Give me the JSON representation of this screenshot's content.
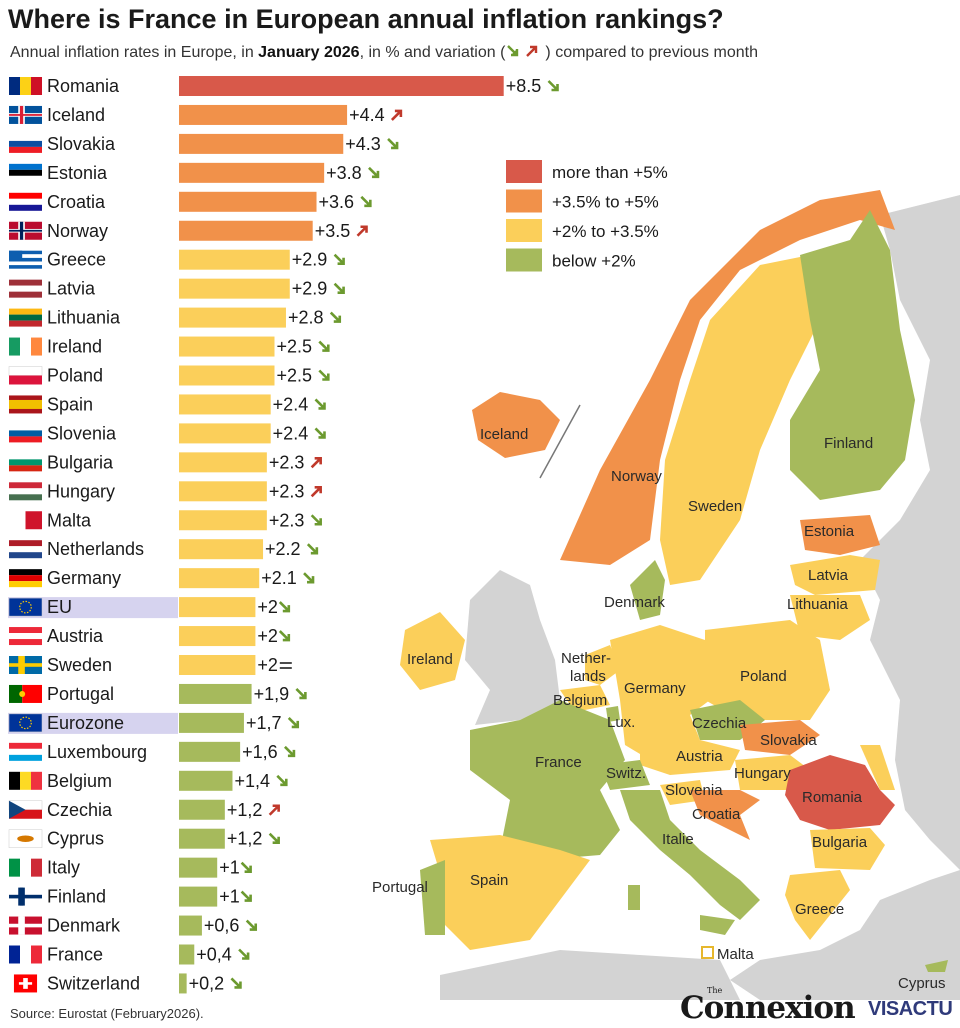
{
  "title": "Where is France in European annual inflation rankings?",
  "subtitle": {
    "prefix": "Annual inflation rates in Europe, in ",
    "bold": "January 2026",
    "suffix": ", in % and variation (",
    "suffix2": ") compared to previous month"
  },
  "source": "Source: Eurostat (February2026).",
  "logo": {
    "the": "The",
    "connexion": "Connexion",
    "visactu": "VISACTU"
  },
  "colors": {
    "gt5": "#d8594a",
    "3_5to5": "#f1914a",
    "2to3_5": "#fbcf5a",
    "lt2": "#a6ba5c",
    "highlight": "#d6d3ef",
    "land_other": "#d3d3d3",
    "sea": "#ffffff"
  },
  "legend": [
    {
      "label": "more than +5%",
      "color": "#d8594a"
    },
    {
      "label": "+3.5% to +5%",
      "color": "#f1914a"
    },
    {
      "label": "+2% to +3.5%",
      "color": "#fbcf5a"
    },
    {
      "label": "below +2%",
      "color": "#a6ba5c"
    }
  ],
  "chart_data": {
    "type": "bar",
    "orientation": "horizontal",
    "title": "Where is France in European annual inflation rankings?",
    "unit": "%",
    "categories": [
      "Romania",
      "Iceland",
      "Slovakia",
      "Estonia",
      "Croatia",
      "Norway",
      "Greece",
      "Latvia",
      "Lithuania",
      "Ireland",
      "Poland",
      "Spain",
      "Slovenia",
      "Bulgaria",
      "Hungary",
      "Malta",
      "Netherlands",
      "Germany",
      "EU",
      "Austria",
      "Sweden",
      "Portugal",
      "Eurozone",
      "Luxembourg",
      "Belgium",
      "Czechia",
      "Cyprus",
      "Italy",
      "Finland",
      "Denmark",
      "France",
      "Switzerland"
    ],
    "values": [
      8.5,
      4.4,
      4.3,
      3.8,
      3.6,
      3.5,
      2.9,
      2.9,
      2.8,
      2.5,
      2.5,
      2.4,
      2.4,
      2.3,
      2.3,
      2.3,
      2.2,
      2.1,
      2,
      2,
      2,
      1.9,
      1.7,
      1.6,
      1.4,
      1.2,
      1.2,
      1,
      1,
      0.6,
      0.4,
      0.2
    ],
    "value_labels": [
      "+8.5",
      "+4.4",
      "+4.3",
      "+3.8",
      "+3.6",
      "+3.5",
      "+2.9",
      "+2.9",
      "+2.8",
      "+2.5",
      "+2.5",
      "+2.4",
      "+2.4",
      "+2.3",
      "+2.3",
      "+2.3",
      "+2.2",
      "+2.1",
      "+2",
      "+2",
      "+2",
      "+1,9",
      "+1,7",
      "+1,6",
      "+1,4",
      "+1,2",
      "+1,2",
      "+1",
      "+1",
      "+0,6",
      "+0,4",
      "+0,2"
    ],
    "variation": [
      "down",
      "up",
      "down",
      "down",
      "down",
      "up",
      "down",
      "down",
      "down",
      "down",
      "down",
      "down",
      "down",
      "up",
      "up",
      "down",
      "down",
      "down",
      "down",
      "down",
      "equal",
      "down",
      "down",
      "down",
      "down",
      "up",
      "down",
      "down",
      "down",
      "down",
      "down",
      "down"
    ],
    "highlighted": [
      "EU",
      "Eurozone"
    ],
    "legend_position": "top-right"
  },
  "map": {
    "labels": [
      "Iceland",
      "Norway",
      "Sweden",
      "Finland",
      "Estonia",
      "Latvia",
      "Lithuania",
      "Denmark",
      "Ireland",
      "Nether-",
      "lands",
      "Belgium",
      "Lux.",
      "Germany",
      "Poland",
      "Czechia",
      "Slovakia",
      "France",
      "Switz.",
      "Austria",
      "Hungary",
      "Romania",
      "Slovenia",
      "Croatia",
      "Italie",
      "Bulgaria",
      "Portugal",
      "Spain",
      "Greece",
      "Malta",
      "Cyprus"
    ]
  }
}
